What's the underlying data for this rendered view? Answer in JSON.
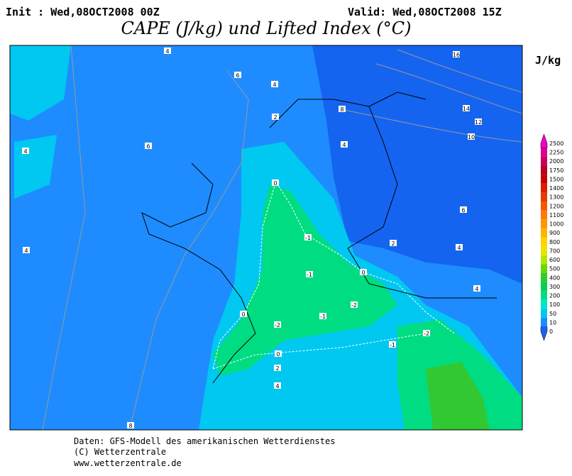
{
  "header": {
    "init": "Init : Wed,08OCT2008 00Z",
    "valid": "Valid: Wed,08OCT2008 15Z",
    "title": "CAPE (J/kg) und Lifted Index (°C)"
  },
  "legend": {
    "unit": "J/kg",
    "levels": [
      "0",
      "10",
      "50",
      "100",
      "200",
      "300",
      "400",
      "500",
      "600",
      "700",
      "800",
      "900",
      "1000",
      "1100",
      "1200",
      "1300",
      "1400",
      "1500",
      "1750",
      "2000",
      "2250",
      "2500"
    ],
    "colors": [
      "#1464f0",
      "#1e8cff",
      "#00c8f0",
      "#00e6c8",
      "#00dc82",
      "#00d250",
      "#32c832",
      "#64dc00",
      "#b4e600",
      "#e6e600",
      "#ffd200",
      "#ffb400",
      "#ff9600",
      "#ff7800",
      "#f05a00",
      "#e63c00",
      "#dc1e00",
      "#c80000",
      "#b4001e",
      "#c8005a",
      "#dc0096",
      "#f000c8"
    ]
  },
  "map": {
    "contour_labels": [
      "4",
      "6",
      "4",
      "2",
      "8",
      "16",
      "14",
      "12",
      "10",
      "4",
      "6",
      "4",
      "0",
      "6",
      "2",
      "4",
      "-1",
      "4",
      "-1",
      "0",
      "4",
      "0",
      "-2",
      "-1",
      "-2",
      "-2",
      "-1",
      "0",
      "2",
      "4",
      "8"
    ]
  },
  "footer": {
    "lines": [
      "Daten: GFS-Modell des amerikanischen Wetterdienstes",
      "(C) Wetterzentrale",
      "www.wetterzentrale.de"
    ]
  }
}
